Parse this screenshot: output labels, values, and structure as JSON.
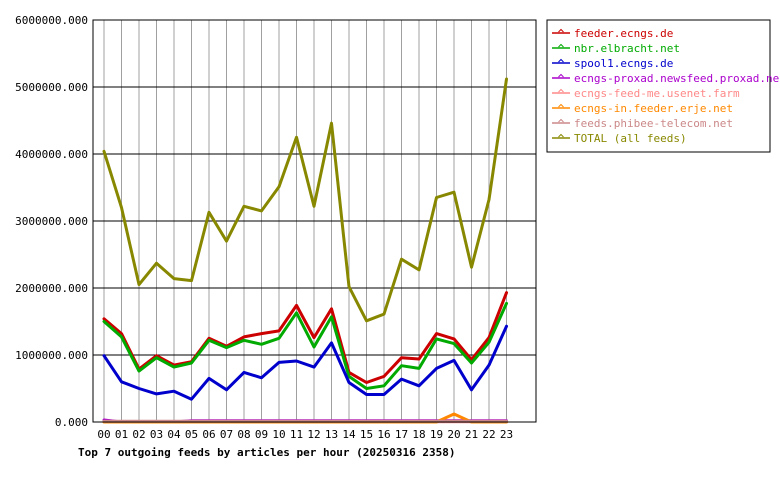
{
  "chart_data": {
    "type": "line",
    "title": "Top 7 outgoing feeds by articles per hour (20250316 2358)",
    "xlabel": "",
    "ylabel": "",
    "ylim": [
      0,
      6000000
    ],
    "yticks": [
      "0.000",
      "1000000.000",
      "2000000.000",
      "3000000.000",
      "4000000.000",
      "5000000.000",
      "6000000.000"
    ],
    "yticks_values": [
      0,
      1000000,
      2000000,
      3000000,
      4000000,
      5000000,
      6000000
    ],
    "x": [
      "00",
      "01",
      "02",
      "03",
      "04",
      "05",
      "06",
      "07",
      "08",
      "09",
      "10",
      "11",
      "12",
      "13",
      "14",
      "15",
      "16",
      "17",
      "18",
      "19",
      "20",
      "21",
      "22",
      "23"
    ],
    "grid": true,
    "legend_position": "right",
    "series": [
      {
        "name": "feeder.ecngs.de",
        "color": "#cc0000",
        "values": [
          1540000,
          1320000,
          790000,
          990000,
          850000,
          900000,
          1250000,
          1130000,
          1270000,
          1320000,
          1360000,
          1740000,
          1260000,
          1690000,
          740000,
          590000,
          680000,
          960000,
          940000,
          1320000,
          1240000,
          930000,
          1260000,
          1930000
        ]
      },
      {
        "name": "nbr.elbracht.net",
        "color": "#00aa00",
        "values": [
          1500000,
          1270000,
          760000,
          960000,
          820000,
          880000,
          1220000,
          1110000,
          1220000,
          1160000,
          1250000,
          1630000,
          1120000,
          1570000,
          680000,
          500000,
          540000,
          840000,
          800000,
          1240000,
          1170000,
          880000,
          1190000,
          1770000
        ]
      },
      {
        "name": "spool1.ecngs.de",
        "color": "#0000cc",
        "values": [
          990000,
          600000,
          500000,
          420000,
          460000,
          340000,
          650000,
          480000,
          740000,
          660000,
          890000,
          910000,
          820000,
          1180000,
          590000,
          410000,
          410000,
          640000,
          540000,
          800000,
          920000,
          480000,
          850000,
          1430000
        ]
      },
      {
        "name": "ecngs-proxad.newsfeed.proxad.net",
        "color": "#aa00cc",
        "values": [
          30000,
          0,
          0,
          0,
          0,
          20000,
          20000,
          20000,
          20000,
          20000,
          20000,
          20000,
          20000,
          20000,
          20000,
          20000,
          20000,
          20000,
          20000,
          20000,
          20000,
          20000,
          20000,
          20000
        ]
      },
      {
        "name": "ecngs-feed-me.usenet.farm",
        "color": "#ff8888",
        "values": [
          5000,
          5000,
          5000,
          5000,
          5000,
          5000,
          5000,
          5000,
          5000,
          5000,
          5000,
          5000,
          5000,
          5000,
          5000,
          5000,
          5000,
          5000,
          5000,
          5000,
          5000,
          5000,
          5000,
          5000
        ]
      },
      {
        "name": "ecngs-in.feeder.erje.net",
        "color": "#ff8800",
        "values": [
          0,
          0,
          0,
          0,
          0,
          0,
          0,
          0,
          0,
          0,
          0,
          0,
          0,
          0,
          0,
          0,
          0,
          0,
          0,
          0,
          120000,
          0,
          0,
          0
        ]
      },
      {
        "name": "feeds.phibee-telecom.net",
        "color": "#cc8888",
        "values": [
          10000,
          10000,
          10000,
          10000,
          10000,
          10000,
          10000,
          10000,
          10000,
          10000,
          10000,
          10000,
          10000,
          10000,
          10000,
          10000,
          10000,
          10000,
          10000,
          10000,
          10000,
          10000,
          10000,
          10000
        ]
      },
      {
        "name": "TOTAL (all feeds)",
        "color": "#888800",
        "values": [
          4040000,
          3200000,
          2050000,
          2370000,
          2140000,
          2110000,
          3130000,
          2700000,
          3220000,
          3150000,
          3510000,
          4250000,
          3220000,
          4460000,
          2020000,
          1510000,
          1610000,
          2430000,
          2270000,
          3350000,
          3430000,
          2310000,
          3320000,
          5120000
        ]
      }
    ]
  }
}
